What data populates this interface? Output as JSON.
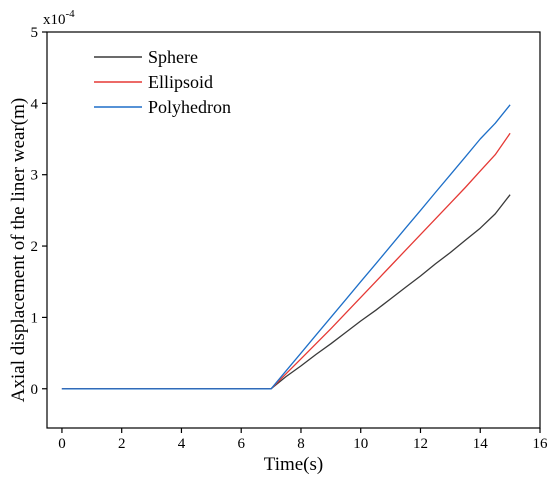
{
  "chart_data": {
    "type": "line",
    "xlabel": "Time(s)",
    "ylabel": "Axial displacement of the liner wear(m)",
    "y_multiplier": {
      "base": "x10",
      "exponent": "-4"
    },
    "xlim": [
      -0.5,
      16
    ],
    "ylim": [
      -0.55,
      5
    ],
    "xticks": [
      0,
      2,
      4,
      6,
      8,
      10,
      12,
      14,
      16
    ],
    "yticks": [
      0,
      1,
      2,
      3,
      4,
      5
    ],
    "grid": false,
    "legend_position": "top-left",
    "series": [
      {
        "name": "Sphere",
        "color": "#3a3a3a",
        "x": [
          0,
          2,
          4,
          6,
          7,
          7.5,
          8,
          8.5,
          9,
          9.5,
          10,
          10.5,
          11,
          11.5,
          12,
          12.5,
          13,
          13.5,
          14,
          14.5,
          15
        ],
        "y": [
          0,
          0,
          0,
          0,
          0,
          0.17,
          0.32,
          0.48,
          0.63,
          0.79,
          0.95,
          1.1,
          1.26,
          1.42,
          1.58,
          1.75,
          1.91,
          2.08,
          2.25,
          2.45,
          2.72
        ]
      },
      {
        "name": "Ellipsoid",
        "color": "#e53935",
        "x": [
          0,
          2,
          4,
          6,
          7,
          7.5,
          8,
          8.5,
          9,
          9.5,
          10,
          10.5,
          11,
          11.5,
          12,
          12.5,
          13,
          13.5,
          14,
          14.5,
          15
        ],
        "y": [
          0,
          0,
          0,
          0,
          0,
          0.21,
          0.42,
          0.63,
          0.84,
          1.06,
          1.28,
          1.5,
          1.72,
          1.94,
          2.16,
          2.38,
          2.6,
          2.82,
          3.05,
          3.28,
          3.58
        ]
      },
      {
        "name": "Polyhedron",
        "color": "#1e6fc8",
        "x": [
          0,
          2,
          4,
          6,
          7,
          7.5,
          8,
          8.5,
          9,
          9.5,
          10,
          10.5,
          11,
          11.5,
          12,
          12.5,
          13,
          13.5,
          14,
          14.5,
          15
        ],
        "y": [
          0,
          0,
          0,
          0,
          0,
          0.25,
          0.5,
          0.75,
          1.0,
          1.25,
          1.5,
          1.75,
          2.0,
          2.25,
          2.5,
          2.75,
          3.0,
          3.25,
          3.5,
          3.72,
          3.98
        ]
      }
    ]
  }
}
